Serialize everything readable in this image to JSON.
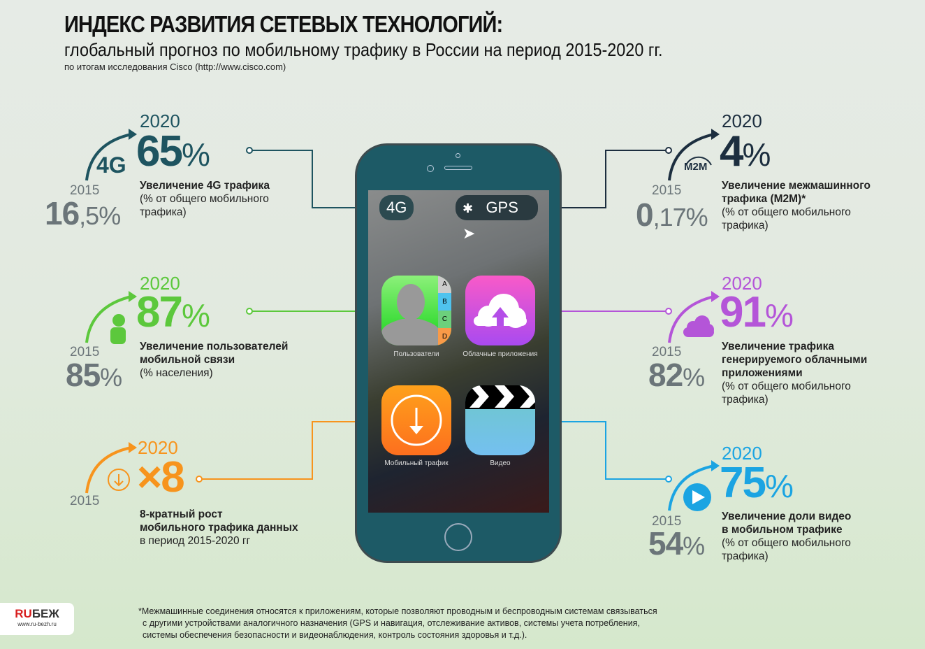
{
  "header": {
    "title": "ИНДЕКС РАЗВИТИЯ СЕТЕВЫХ ТЕХНОЛОГИЙ:",
    "subtitle": "глобальный прогноз по мобильному трафику в России на период 2015-2020 гг.",
    "source": "по итогам исследования Cisco (http://www.cisco.com)"
  },
  "colors": {
    "4g": "#1e5460",
    "users": "#5cc83c",
    "mobile": "#f7941d",
    "m2m": "#1c2e3f",
    "cloud": "#b455d8",
    "video": "#1ba4e2",
    "old": "#6b7579"
  },
  "blocks": {
    "g4": {
      "icon": "4G",
      "y2020": "2020",
      "value": "65",
      "unit": "%",
      "y2015": "2015",
      "old": "16",
      "old_rest": ",5%",
      "title": "Увеличение 4G трафика",
      "lines": [
        "(% от общего мобильного",
        "трафика)"
      ]
    },
    "users": {
      "y2020": "2020",
      "value": "87",
      "unit": "%",
      "y2015": "2015",
      "old": "85",
      "old_rest": "%",
      "title": "Увеличение пользователей",
      "lines": [
        "мобильной связи",
        "(% населения)"
      ]
    },
    "mobile": {
      "y2020": "2020",
      "value": "×8",
      "y2015": "2015",
      "title": "8-кратный рост",
      "lines": [
        "мобильного трафика данных",
        "в период 2015-2020 гг"
      ]
    },
    "m2m": {
      "icon": "M2M",
      "y2020": "2020",
      "value": "4",
      "unit": "%",
      "y2015": "2015",
      "old": "0",
      "old_rest": ",17%",
      "title": "Увеличение  межмашинного",
      "lines": [
        "трафика (M2M)*",
        "(% от общего мобильного",
        "трафика)"
      ]
    },
    "cloud": {
      "y2020": "2020",
      "value": "91",
      "unit": "%",
      "y2015": "2015",
      "old": "82",
      "old_rest": "%",
      "title": "Увеличение трафика",
      "lines": [
        "генерируемого облачными",
        "приложениями",
        "(% от общего мобильного",
        "трафика)"
      ]
    },
    "video": {
      "y2020": "2020",
      "value": "75",
      "unit": "%",
      "y2015": "2015",
      "old": "54",
      "old_rest": "%",
      "title": "Увеличение доли видео",
      "lines": [
        "в мобильном трафике",
        "(% от общего мобильного",
        "трафика)"
      ]
    }
  },
  "phone": {
    "status_4g": "4G",
    "status_gps": "GPS",
    "apps": [
      "Пользователи",
      "Облачные приложения",
      "Мобильный трафик",
      "Видео"
    ],
    "contact_letters": [
      "A",
      "B",
      "C",
      "D"
    ]
  },
  "footnote": [
    "*Межмашинные соединения относятся к приложениям, которые позволяют проводным и беспроводным системам связываться",
    "с другими устройствами аналогичного назначения (GPS и навигация, отслеживание активов, системы учета потребления,",
    "системы обеспечения безопасности и видеонаблюдения, контроль состояния здоровья и т.д.)."
  ],
  "logo": {
    "ru": "RU",
    "rest": "БЕЖ",
    "url": "www.ru-bezh.ru"
  }
}
